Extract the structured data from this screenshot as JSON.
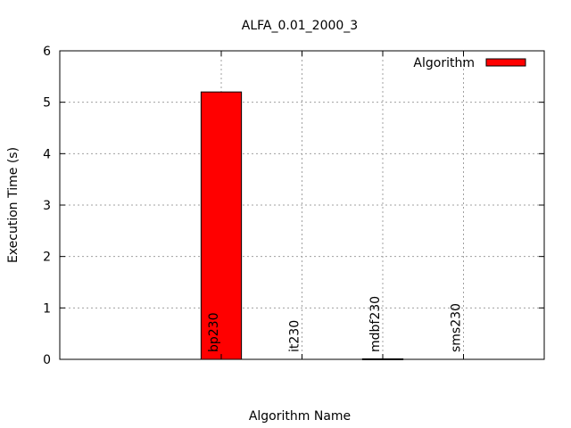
{
  "chart_data": {
    "type": "bar",
    "title": "ALFA_0.01_2000_3",
    "xlabel": "Algorithm Name",
    "ylabel": "Execution Time (s)",
    "ylim": [
      0,
      6
    ],
    "yticks": [
      0,
      1,
      2,
      3,
      4,
      5,
      6
    ],
    "categories": [
      "bp230",
      "it230",
      "mdbf230",
      "sms230"
    ],
    "series": [
      {
        "name": "Algorithm",
        "values": [
          5.2,
          0.0,
          0.01,
          0.0
        ],
        "color": "#ff0000"
      }
    ],
    "grid": true,
    "legend_position": "top-right"
  }
}
